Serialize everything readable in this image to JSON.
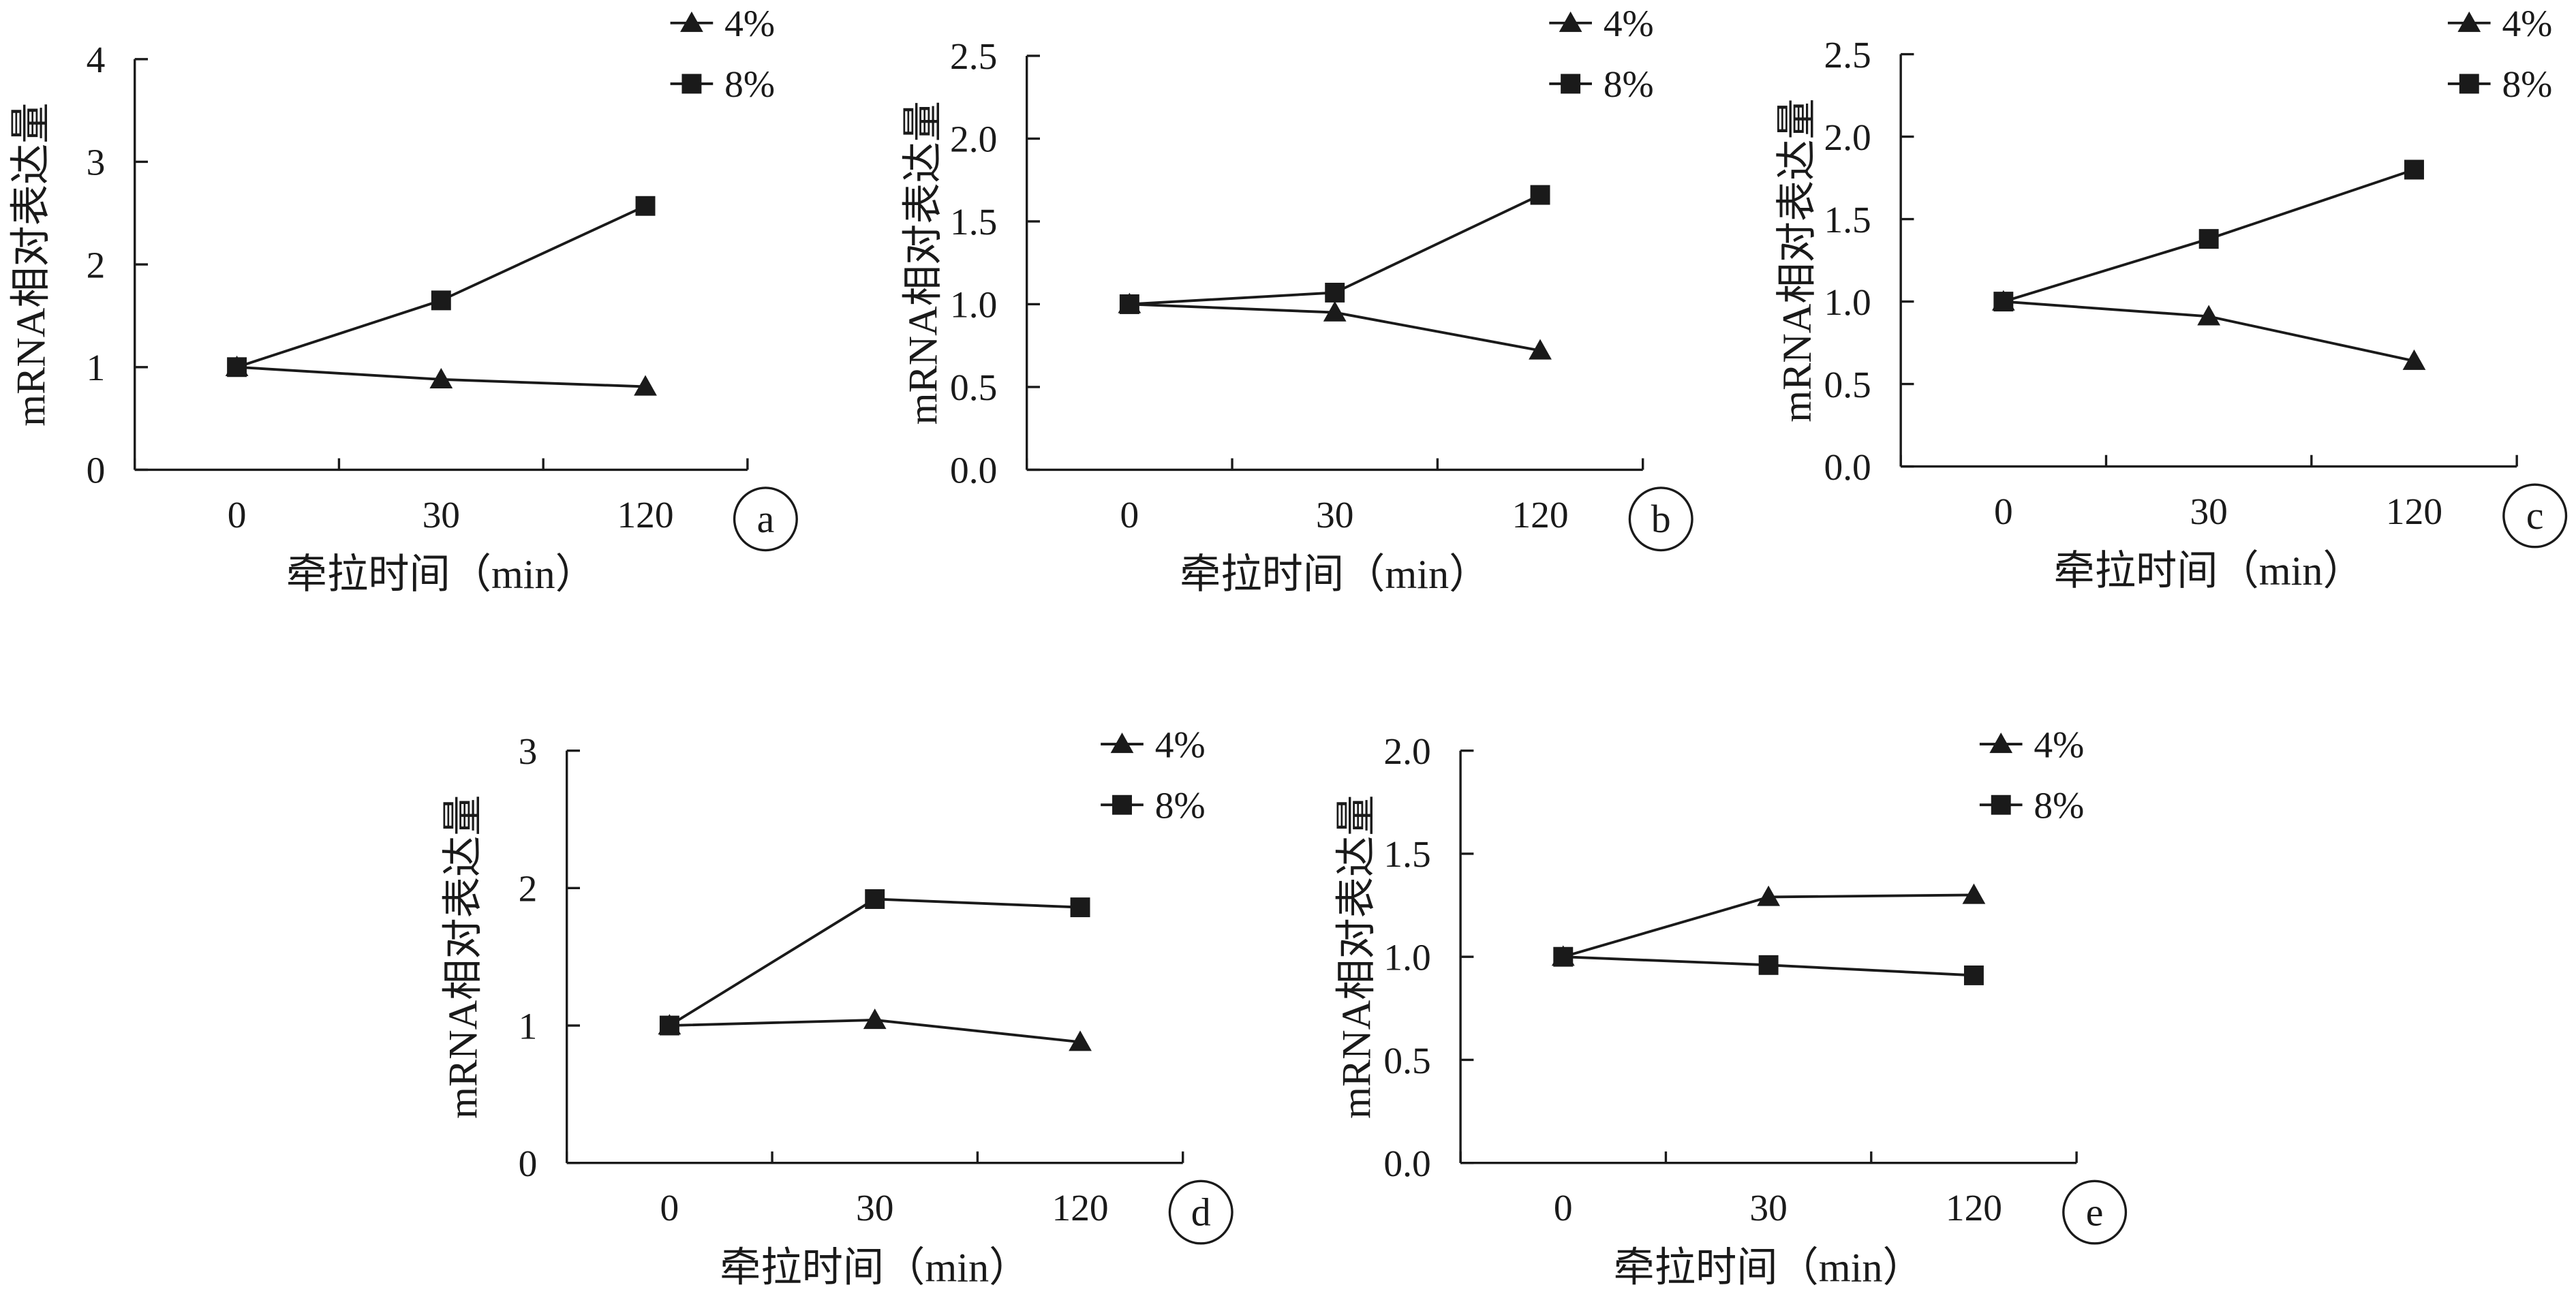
{
  "colors": {
    "background": "#ffffff",
    "ink": "#1a1a1a"
  },
  "chart_data": [
    {
      "type": "line",
      "panel_label": "a",
      "categories": [
        "0",
        "30",
        "120"
      ],
      "xlabel": "牵拉时间（min）",
      "ylabel": "mRNA相对表达量",
      "ylim": [
        0,
        4
      ],
      "yticks": [
        "0",
        "1",
        "2",
        "3",
        "4"
      ],
      "grid": false,
      "legend_position": "top-right",
      "series": [
        {
          "name": "4%",
          "marker": "triangle",
          "values": [
            1.0,
            0.88,
            0.81
          ]
        },
        {
          "name": "8%",
          "marker": "square",
          "values": [
            1.0,
            1.65,
            2.57
          ]
        }
      ]
    },
    {
      "type": "line",
      "panel_label": "b",
      "categories": [
        "0",
        "30",
        "120"
      ],
      "xlabel": "牵拉时间（min）",
      "ylabel": "mRNA相对表达量",
      "ylim": [
        0,
        2.5
      ],
      "yticks": [
        "0.0",
        "0.5",
        "1.0",
        "1.5",
        "2.0",
        "2.5"
      ],
      "grid": false,
      "legend_position": "top-right",
      "series": [
        {
          "name": "4%",
          "marker": "triangle",
          "values": [
            1.0,
            0.95,
            0.72
          ]
        },
        {
          "name": "8%",
          "marker": "square",
          "values": [
            1.0,
            1.07,
            1.66
          ]
        }
      ]
    },
    {
      "type": "line",
      "panel_label": "c",
      "categories": [
        "0",
        "30",
        "120"
      ],
      "xlabel": "牵拉时间（min）",
      "ylabel": "mRNA相对表达量",
      "ylim": [
        0,
        2.5
      ],
      "yticks": [
        "0.0",
        "0.5",
        "1.0",
        "1.5",
        "2.0",
        "2.5"
      ],
      "grid": false,
      "legend_position": "top-right",
      "series": [
        {
          "name": "4%",
          "marker": "triangle",
          "values": [
            1.0,
            0.91,
            0.64
          ]
        },
        {
          "name": "8%",
          "marker": "square",
          "values": [
            1.0,
            1.38,
            1.8
          ]
        }
      ]
    },
    {
      "type": "line",
      "panel_label": "d",
      "categories": [
        "0",
        "30",
        "120"
      ],
      "xlabel": "牵拉时间（min）",
      "ylabel": "mRNA相对表达量",
      "ylim": [
        0,
        3
      ],
      "yticks": [
        "0",
        "1",
        "2",
        "3"
      ],
      "grid": false,
      "legend_position": "top-right",
      "series": [
        {
          "name": "4%",
          "marker": "triangle",
          "values": [
            1.0,
            1.04,
            0.88
          ]
        },
        {
          "name": "8%",
          "marker": "square",
          "values": [
            1.0,
            1.92,
            1.86
          ]
        }
      ]
    },
    {
      "type": "line",
      "panel_label": "e",
      "categories": [
        "0",
        "30",
        "120"
      ],
      "xlabel": "牵拉时间（min）",
      "ylabel": "mRNA相对表达量",
      "ylim": [
        0,
        2
      ],
      "yticks": [
        "0.0",
        "0.5",
        "1.0",
        "1.5",
        "2.0"
      ],
      "grid": false,
      "legend_position": "top-right",
      "series": [
        {
          "name": "4%",
          "marker": "triangle",
          "values": [
            1.0,
            1.29,
            1.3
          ]
        },
        {
          "name": "8%",
          "marker": "square",
          "values": [
            1.0,
            0.96,
            0.91
          ]
        }
      ]
    }
  ]
}
